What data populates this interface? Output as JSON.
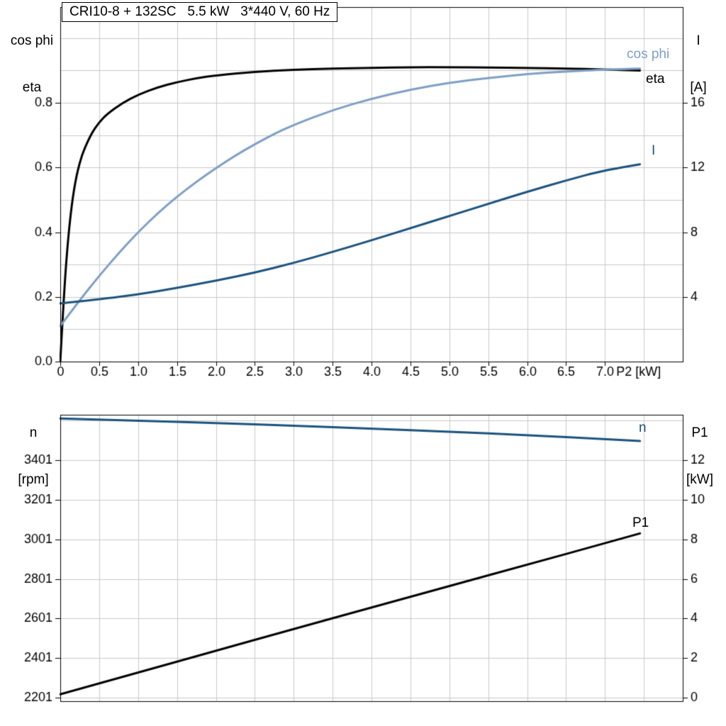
{
  "title": "CRI10-8 + 132SC   5.5 kW   3*440 V, 60 Hz",
  "colors": {
    "black": "#000000",
    "light_blue": "#7e9fc5",
    "dark_blue": "#1a527e",
    "grid": "#c9c9c9",
    "axis": "#000000",
    "text": "#000000",
    "background": "#ffffff"
  },
  "axis_corner_labels": {
    "top_left": [
      "cos phi",
      "eta"
    ],
    "top_right": [
      "I",
      "[A]"
    ],
    "bottom_left": [
      "n",
      "[rpm]"
    ],
    "bottom_right": [
      "P1",
      "[kW]"
    ]
  },
  "chart_data": [
    {
      "type": "line",
      "title": "CRI10-8 + 132SC   5.5 kW   3*440 V, 60 Hz",
      "grid": true,
      "x": {
        "label": "P2 [kW]",
        "unit_label": "P2 [kW]",
        "min": 0,
        "max": 8,
        "grid_values": [
          0,
          0.5,
          1,
          1.5,
          2,
          2.5,
          3,
          3.5,
          4,
          4.5,
          5,
          5.5,
          6,
          6.5,
          7,
          7.5,
          8
        ],
        "tick_values": [
          0,
          0.5,
          1,
          1.5,
          2,
          2.5,
          3,
          3.5,
          4,
          4.5,
          5,
          5.5,
          6,
          6.5,
          7
        ],
        "tick_labels": [
          "0",
          "0.5",
          "1.0",
          "1.5",
          "2.0",
          "2.5",
          "3.0",
          "3.5",
          "4.0",
          "4.5",
          "5.0",
          "5.5",
          "6.0",
          "6.5",
          "7.0"
        ]
      },
      "left": {
        "label": "cos phi / eta",
        "min": 0,
        "max": 1.096,
        "grid_values": [
          0,
          0.1,
          0.2,
          0.3,
          0.4,
          0.5,
          0.6,
          0.7,
          0.8,
          0.9,
          1.0
        ],
        "tick_values": [
          0,
          0.2,
          0.4,
          0.6,
          0.8
        ],
        "tick_labels": [
          "0.0",
          "0.2",
          "0.4",
          "0.6",
          "0.8"
        ]
      },
      "right": {
        "label": "I [A]",
        "min": 0,
        "max": 21.92,
        "tick_values": [
          4,
          8,
          12,
          16
        ],
        "tick_labels": [
          "4",
          "8",
          "12",
          "16"
        ]
      },
      "series": [
        {
          "name": "eta",
          "axis": "left",
          "color": "black",
          "x": [
            0,
            0.05,
            0.1,
            0.15,
            0.2,
            0.25,
            0.3,
            0.4,
            0.5,
            0.6,
            0.8,
            1.0,
            1.25,
            1.5,
            1.75,
            2.0,
            2.5,
            3.0,
            3.5,
            4.0,
            4.5,
            5.0,
            5.5,
            6.0,
            6.5,
            7.0,
            7.45
          ],
          "y": [
            0,
            0.22,
            0.38,
            0.49,
            0.565,
            0.615,
            0.652,
            0.705,
            0.74,
            0.765,
            0.8,
            0.825,
            0.848,
            0.864,
            0.876,
            0.885,
            0.896,
            0.902,
            0.906,
            0.908,
            0.91,
            0.91,
            0.909,
            0.908,
            0.906,
            0.903,
            0.9
          ]
        },
        {
          "name": "cos phi",
          "axis": "left",
          "color": "light_blue",
          "x": [
            0,
            0.25,
            0.5,
            0.75,
            1.0,
            1.25,
            1.5,
            1.75,
            2.0,
            2.25,
            2.5,
            2.75,
            3.0,
            3.5,
            4.0,
            4.5,
            5.0,
            5.5,
            6.0,
            6.5,
            7.0,
            7.45
          ],
          "y": [
            0.11,
            0.19,
            0.265,
            0.335,
            0.4,
            0.458,
            0.51,
            0.556,
            0.598,
            0.637,
            0.672,
            0.704,
            0.732,
            0.778,
            0.813,
            0.841,
            0.862,
            0.877,
            0.889,
            0.897,
            0.903,
            0.906
          ]
        },
        {
          "name": "I",
          "axis": "right",
          "color": "dark_blue",
          "x": [
            0,
            0.5,
            1.0,
            1.5,
            2.0,
            2.5,
            3.0,
            3.5,
            4.0,
            4.5,
            5.0,
            5.5,
            6.0,
            6.5,
            7.0,
            7.45
          ],
          "y": [
            3.6,
            3.85,
            4.15,
            4.55,
            5.0,
            5.5,
            6.1,
            6.78,
            7.5,
            8.25,
            9.0,
            9.75,
            10.5,
            11.2,
            11.85,
            12.2
          ]
        }
      ]
    },
    {
      "type": "line",
      "title": "",
      "grid": true,
      "x": {
        "label": "P2 [kW]",
        "unit_label": "",
        "min": 0,
        "max": 8,
        "grid_values": [
          0,
          0.5,
          1,
          1.5,
          2,
          2.5,
          3,
          3.5,
          4,
          4.5,
          5,
          5.5,
          6,
          6.5,
          7,
          7.5,
          8
        ],
        "tick_values": [],
        "tick_labels": []
      },
      "left": {
        "label": "n [rpm]",
        "min": 2183,
        "max": 3631,
        "grid_values": [
          2201,
          2401,
          2601,
          2801,
          3001,
          3201,
          3401,
          3601
        ],
        "tick_values": [
          2201,
          2401,
          2601,
          2801,
          3001,
          3201,
          3401
        ],
        "tick_labels": [
          "2201",
          "2401",
          "2601",
          "2801",
          "3001",
          "3201",
          "3401"
        ]
      },
      "right": {
        "label": "P1 [kW]",
        "min": -0.18,
        "max": 14.3,
        "tick_values": [
          0,
          2,
          4,
          6,
          8,
          10,
          12
        ],
        "tick_labels": [
          "0",
          "2",
          "4",
          "6",
          "8",
          "10",
          "12"
        ]
      },
      "series": [
        {
          "name": "n",
          "axis": "left",
          "color": "dark_blue",
          "x": [
            0,
            1,
            2,
            3,
            4,
            5,
            6,
            7,
            7.45
          ],
          "y": [
            3612,
            3601,
            3589,
            3576,
            3561,
            3545,
            3528,
            3508,
            3498
          ]
        },
        {
          "name": "P1",
          "axis": "right",
          "color": "black",
          "x": [
            0,
            1,
            2,
            3,
            4,
            5,
            6,
            7,
            7.45
          ],
          "y": [
            0.17,
            1.27,
            2.37,
            3.47,
            4.56,
            5.64,
            6.72,
            7.8,
            8.3
          ]
        }
      ]
    }
  ]
}
